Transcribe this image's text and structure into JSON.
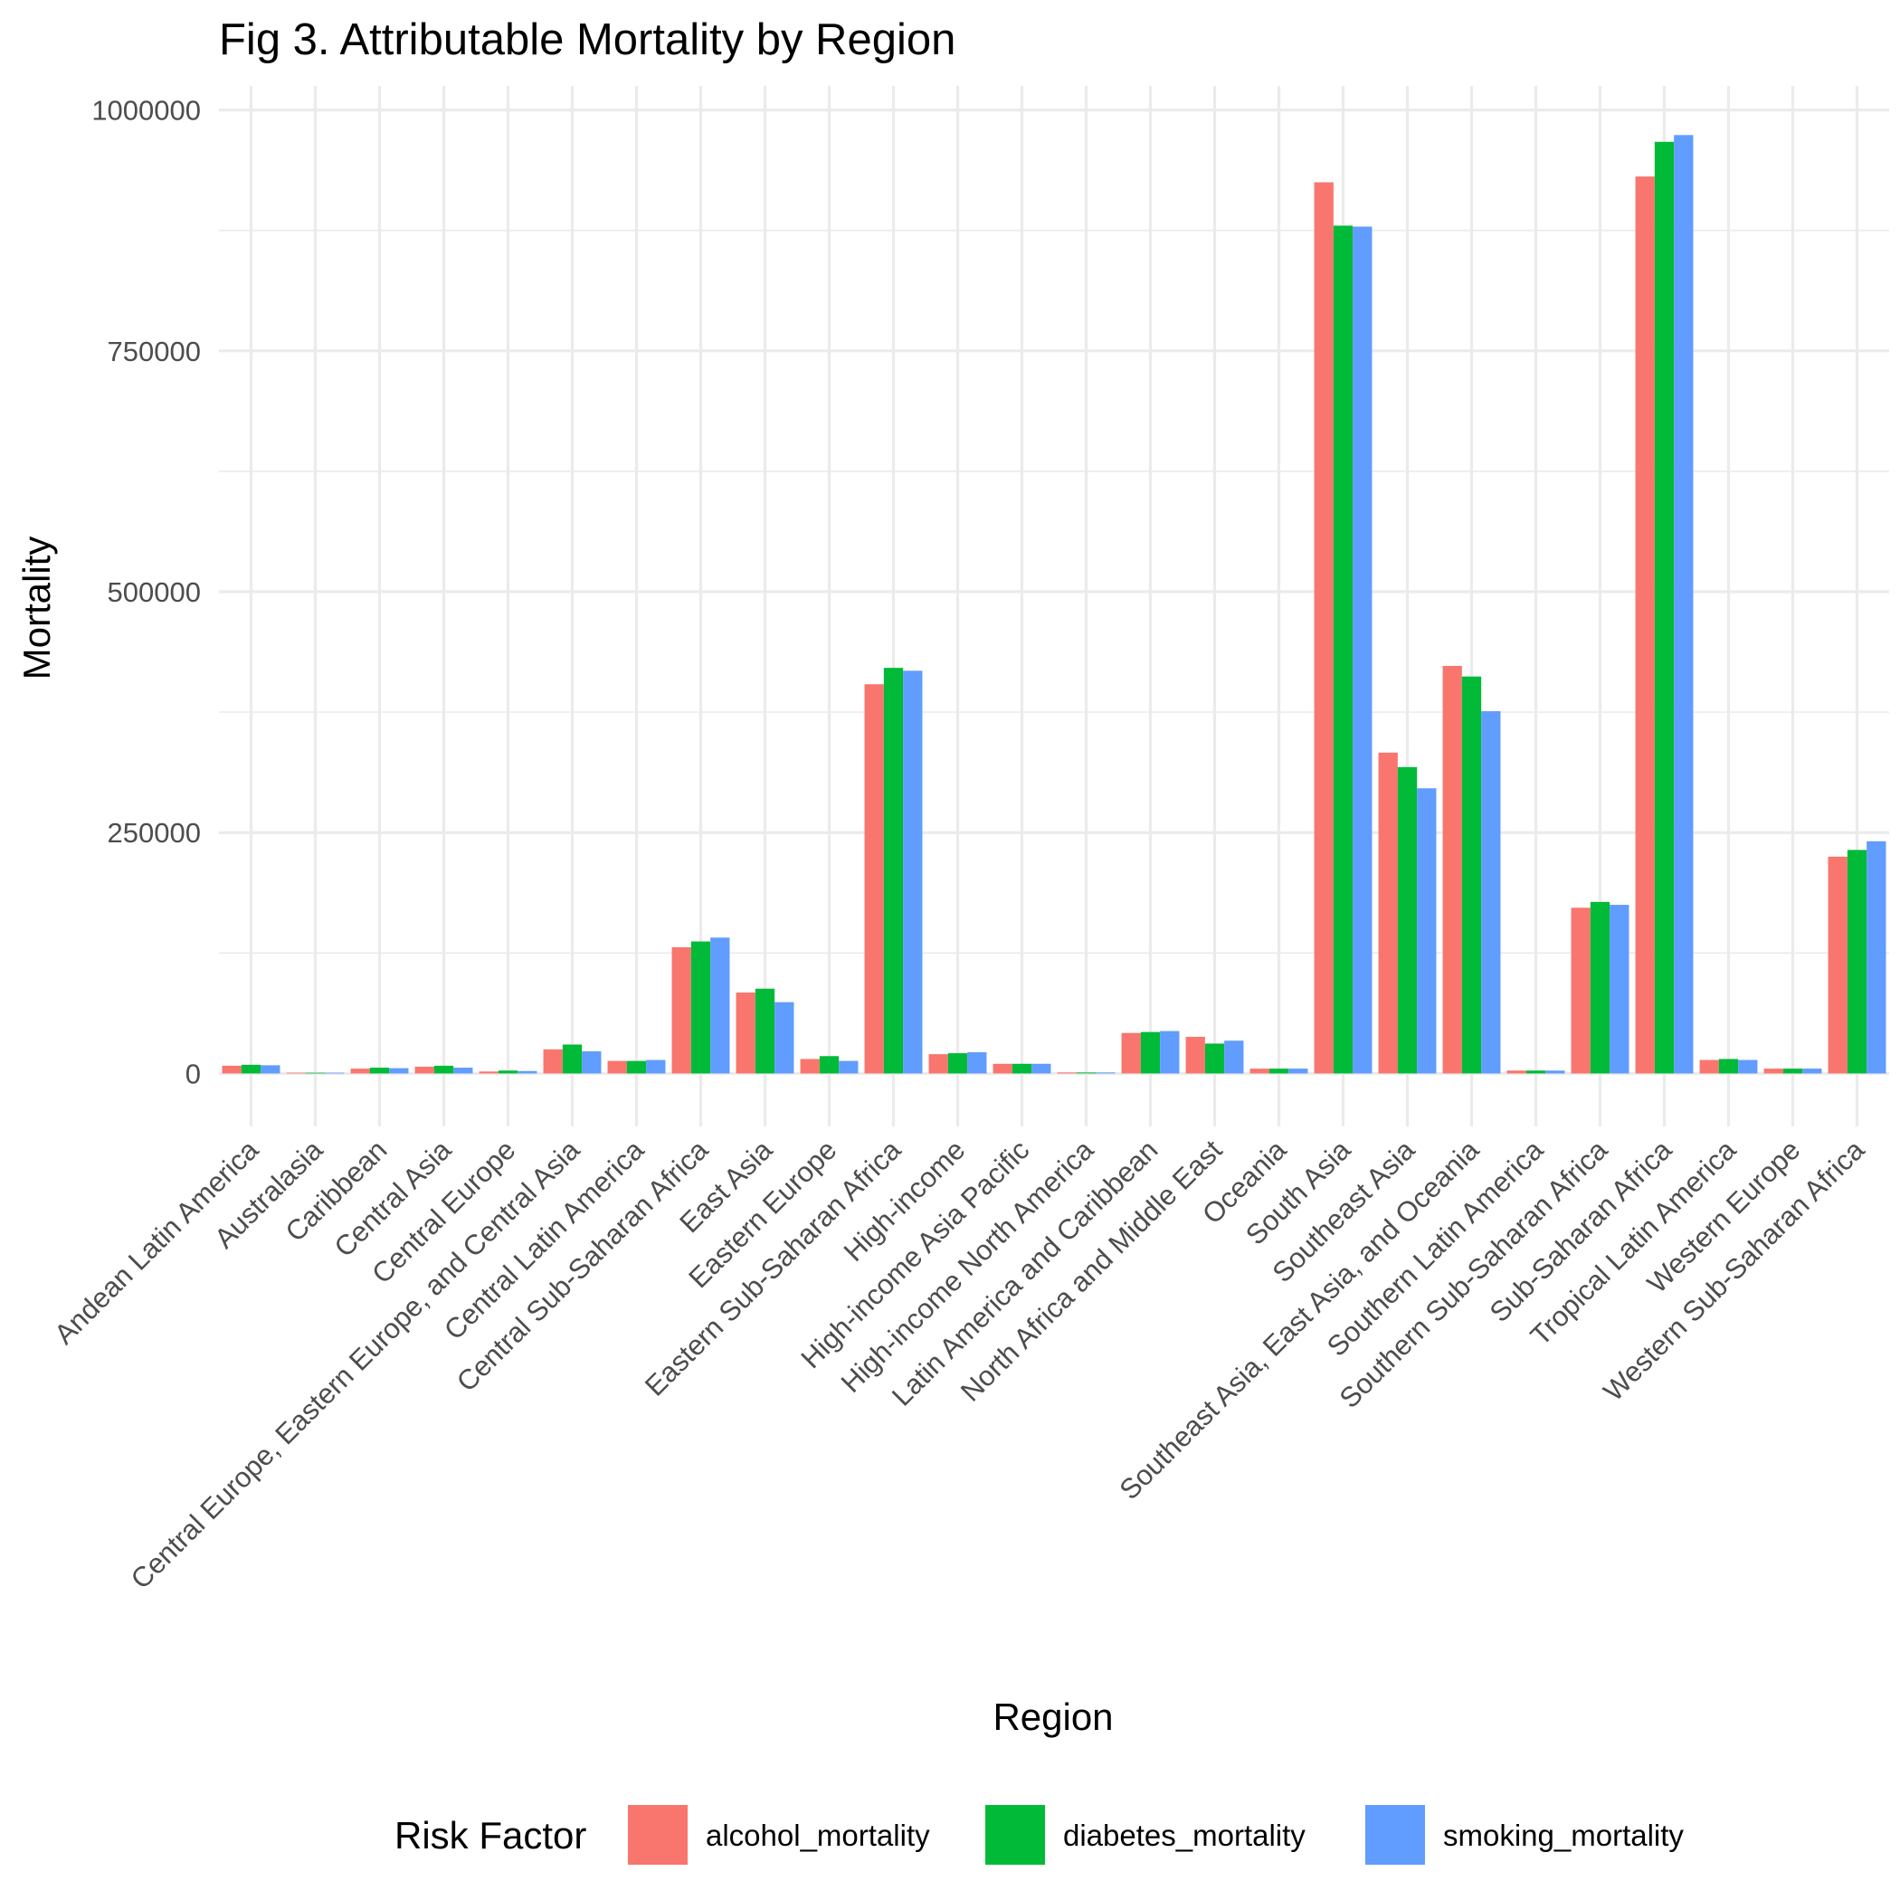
{
  "chart_data": {
    "type": "bar",
    "title": "Fig 3. Attributable Mortality by Region",
    "xlabel": "Region",
    "ylabel": "Mortality",
    "ylim": [
      -55000,
      1025000
    ],
    "yticks": [
      0,
      250000,
      500000,
      750000,
      1000000
    ],
    "ytick_labels": [
      "0",
      "250000",
      "500000",
      "750000",
      "1000000"
    ],
    "grid": true,
    "legend_position": "bottom",
    "legend_title": "Risk Factor",
    "categories": [
      "Andean Latin America",
      "Australasia",
      "Caribbean",
      "Central Asia",
      "Central Europe",
      "Central Europe, Eastern Europe, and Central Asia",
      "Central Latin America",
      "Central Sub-Saharan Africa",
      "East Asia",
      "Eastern Europe",
      "Eastern Sub-Saharan Africa",
      "High-income",
      "High-income Asia Pacific",
      "High-income North America",
      "Latin America and Caribbean",
      "North Africa and Middle East",
      "Oceania",
      "South Asia",
      "Southeast Asia",
      "Southeast Asia, East Asia, and Oceania",
      "Southern Latin America",
      "Southern Sub-Saharan Africa",
      "Sub-Saharan Africa",
      "Tropical Latin America",
      "Western Europe",
      "Western Sub-Saharan Africa"
    ],
    "series": [
      {
        "name": "alcohol_mortality",
        "color": "#F8766D",
        "values": [
          8000,
          500,
          5000,
          7000,
          2000,
          25000,
          13000,
          131000,
          84000,
          15000,
          404000,
          20000,
          10000,
          1000,
          42000,
          38000,
          5000,
          925000,
          333000,
          423000,
          3000,
          172000,
          931000,
          14000,
          5000,
          225000
        ]
      },
      {
        "name": "diabetes_mortality",
        "color": "#00BA38",
        "values": [
          9000,
          500,
          6000,
          8000,
          3000,
          30000,
          13000,
          137000,
          88000,
          18000,
          421000,
          21000,
          10000,
          1000,
          43000,
          31000,
          5000,
          880000,
          318000,
          412000,
          3000,
          178000,
          967000,
          15000,
          5000,
          232000
        ]
      },
      {
        "name": "smoking_mortality",
        "color": "#619CFF",
        "values": [
          8500,
          500,
          5500,
          6000,
          2500,
          23000,
          14000,
          141000,
          74000,
          13000,
          418000,
          22000,
          10000,
          1000,
          44000,
          34000,
          5000,
          879000,
          296000,
          376000,
          3000,
          175000,
          974000,
          14000,
          5000,
          241000
        ]
      }
    ]
  }
}
